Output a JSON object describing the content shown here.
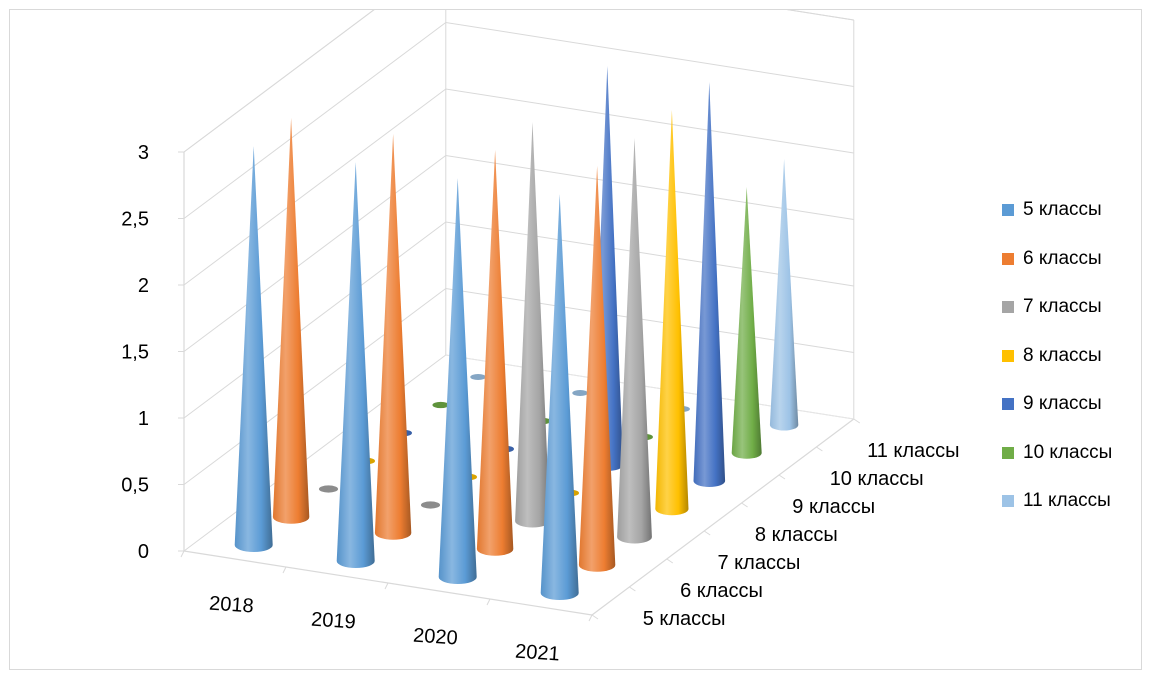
{
  "chart_data": {
    "type": "3d-cone",
    "categories": [
      "2018",
      "2019",
      "2020",
      "2021"
    ],
    "series": [
      {
        "name": "5 классы",
        "color": "#5B9BD5",
        "values": [
          3,
          3,
          3,
          3
        ]
      },
      {
        "name": "6 классы",
        "color": "#ED7D31",
        "values": [
          3,
          3,
          3,
          3
        ]
      },
      {
        "name": "7 классы",
        "color": "#A5A5A5",
        "values": [
          0,
          0,
          3,
          3
        ]
      },
      {
        "name": "8 классы",
        "color": "#FFC000",
        "values": [
          0,
          0,
          0,
          3
        ]
      },
      {
        "name": "9 классы",
        "color": "#4472C4",
        "values": [
          0,
          0,
          3,
          3
        ]
      },
      {
        "name": "10 классы",
        "color": "#70AD47",
        "values": [
          0,
          0,
          0,
          2
        ]
      },
      {
        "name": "11 классы",
        "color": "#9DC3E6",
        "values": [
          0,
          0,
          0,
          2
        ]
      }
    ],
    "depth_labels": [
      "5 классы",
      "6 классы",
      "7 классы",
      "8 классы",
      "9 классы",
      "10 классы",
      "11 классы"
    ],
    "y_ticks": [
      "0",
      "0,5",
      "1",
      "1,5",
      "2",
      "2,5",
      "3"
    ],
    "ylim": [
      0,
      3
    ],
    "grid": true,
    "legend_position": "right"
  }
}
